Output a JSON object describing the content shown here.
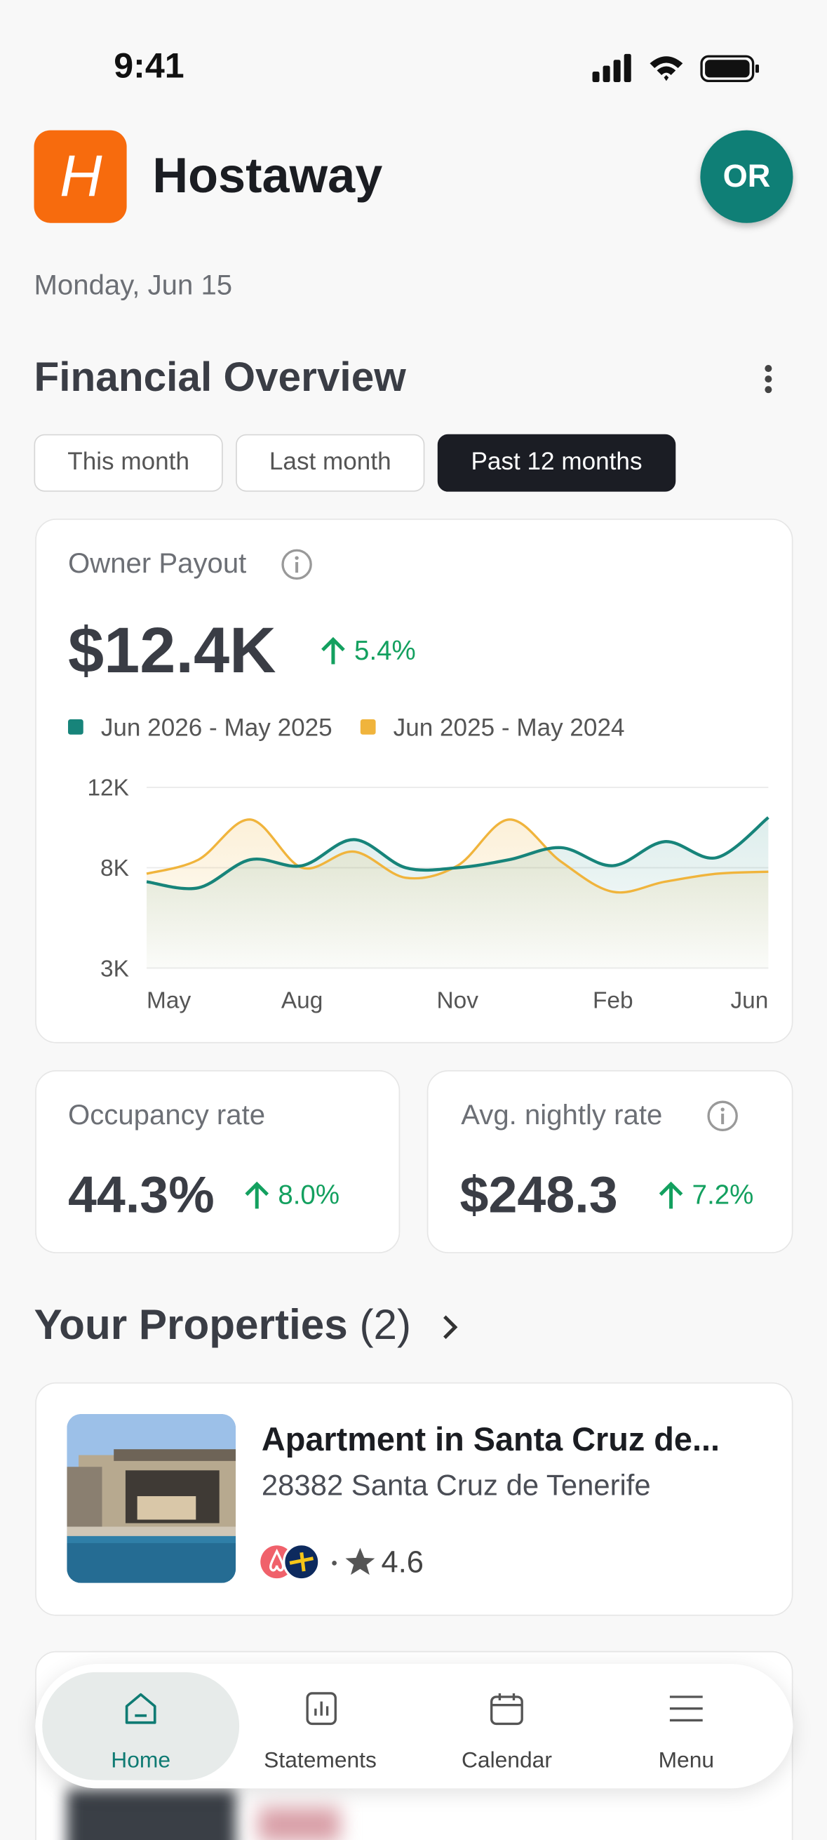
{
  "status_bar": {
    "time": "9:41"
  },
  "header": {
    "app_name": "Hostaway",
    "avatar": "OR"
  },
  "date": "Monday, Jun 15",
  "overview": {
    "title": "Financial Overview",
    "tabs": [
      "This month",
      "Last month",
      "Past 12 months"
    ],
    "payout_label": "Owner Payout",
    "payout_value": "$12.4K",
    "payout_change": "5.4%"
  },
  "chart_data": {
    "type": "line",
    "categories": [
      "May",
      null,
      null,
      "Aug",
      null,
      null,
      "Nov",
      null,
      null,
      "Feb",
      null,
      null,
      "Jun"
    ],
    "series": [
      {
        "name": "Jun 2026 - May 2025",
        "color": "#17847a",
        "values": [
          7300,
          7000,
          8400,
          8100,
          9400,
          8000,
          8000,
          8400,
          9000,
          8100,
          9300,
          8500,
          10500
        ]
      },
      {
        "name": "Jun 2025 - May 2024",
        "color": "#f0b43c",
        "values": [
          7700,
          8400,
          10400,
          8000,
          8800,
          7500,
          8100,
          10400,
          8300,
          6800,
          7300,
          7700,
          7800
        ]
      }
    ],
    "ylim": [
      3000,
      12000
    ],
    "yticks": [
      {
        "value": 3000,
        "label": "3K"
      },
      {
        "value": 8000,
        "label": "8K"
      },
      {
        "value": 12000,
        "label": "12K"
      }
    ],
    "grid": true
  },
  "stats": [
    {
      "label": "Occupancy rate",
      "value": "44.3%",
      "change": "8.0%"
    },
    {
      "label": "Avg. nightly rate",
      "value": "$248.3",
      "change": "7.2%"
    }
  ],
  "properties": {
    "title": "Your Properties",
    "count": "(2)",
    "items": [
      {
        "name": "Apartment in Santa Cruz de...",
        "address": "28382 Santa Cruz de Tenerife",
        "rating": "4.6"
      }
    ]
  },
  "nav": [
    "Home",
    "Statements",
    "Calendar",
    "Menu"
  ]
}
